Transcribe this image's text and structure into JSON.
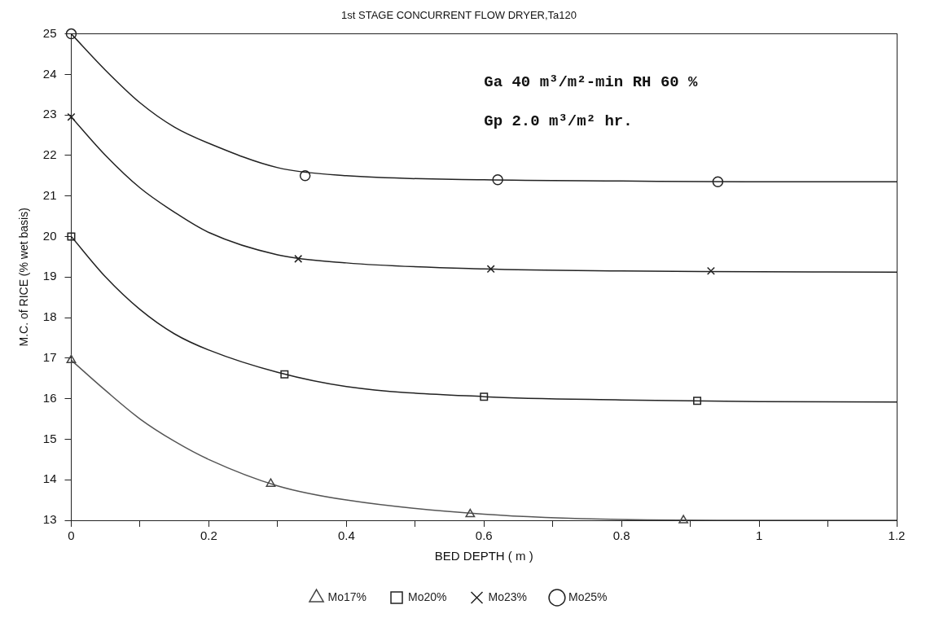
{
  "chart_data": {
    "type": "scatter",
    "title": "1st STAGE CONCURRENT FLOW DRYER,Ta120",
    "xlabel": "BED DEPTH ( m )",
    "ylabel": "M.C. of RICE (% wet basis)",
    "annotations": [
      "Ga 40 m³/m²-min RH 60 %",
      "Gp 2.0 m³/m² hr."
    ],
    "xlim": [
      0,
      1.2
    ],
    "xticks": [
      0,
      {
        "value": 0.1,
        "label": null
      },
      0.2,
      {
        "value": 0.3,
        "label": null
      },
      0.4,
      {
        "value": 0.5,
        "label": null
      },
      0.6,
      {
        "value": 0.7,
        "label": null
      },
      0.8,
      {
        "value": 0.9,
        "label": null
      },
      1,
      {
        "value": 1.1,
        "label": null
      },
      1.2
    ],
    "ylim": [
      13,
      25
    ],
    "yticks": [
      13,
      14,
      15,
      16,
      17,
      18,
      19,
      20,
      21,
      22,
      23,
      24,
      25
    ],
    "grid": false,
    "legend": "bottom",
    "series": [
      {
        "name": "Mo17%",
        "type": "scatter",
        "marker": "triangle",
        "color": "#444444",
        "x": [
          0,
          0.29,
          0.58,
          0.89
        ],
        "values": [
          16.95,
          13.9,
          13.15,
          13.0
        ]
      },
      {
        "name": "Mo20%",
        "type": "scatter",
        "marker": "square",
        "color": "#222222",
        "x": [
          0,
          0.31,
          0.6,
          0.91
        ],
        "values": [
          20,
          16.6,
          16.05,
          15.95
        ]
      },
      {
        "name": "Mo23%",
        "type": "scatter",
        "marker": "cross",
        "color": "#222222",
        "x": [
          0,
          0.33,
          0.61,
          0.93
        ],
        "values": [
          22.95,
          19.45,
          19.2,
          19.15
        ]
      },
      {
        "name": "Mo25%",
        "type": "scatter",
        "marker": "circle",
        "color": "#222222",
        "x": [
          0,
          0.34,
          0.62,
          0.94
        ],
        "values": [
          25,
          21.5,
          21.4,
          21.35
        ]
      },
      {
        "type": "line",
        "color": "#555555",
        "x": [
          0,
          0.05,
          0.1,
          0.15,
          0.2,
          0.3,
          0.4,
          0.6,
          0.8,
          1.0,
          1.2
        ],
        "values": [
          16.95,
          16.2,
          15.5,
          14.95,
          14.5,
          13.85,
          13.5,
          13.15,
          13.02,
          13.0,
          13.0
        ]
      },
      {
        "type": "line",
        "color": "#222222",
        "x": [
          0,
          0.05,
          0.1,
          0.15,
          0.2,
          0.3,
          0.4,
          0.6,
          0.8,
          1.0,
          1.2
        ],
        "values": [
          20,
          19.0,
          18.2,
          17.6,
          17.2,
          16.65,
          16.3,
          16.05,
          15.97,
          15.93,
          15.92
        ]
      },
      {
        "type": "line",
        "color": "#222222",
        "x": [
          0,
          0.05,
          0.1,
          0.15,
          0.2,
          0.3,
          0.4,
          0.6,
          0.8,
          1.0,
          1.2
        ],
        "values": [
          22.95,
          22.0,
          21.2,
          20.6,
          20.1,
          19.55,
          19.35,
          19.2,
          19.15,
          19.13,
          19.12
        ]
      },
      {
        "type": "line",
        "color": "#222222",
        "x": [
          0,
          0.05,
          0.1,
          0.15,
          0.2,
          0.3,
          0.4,
          0.6,
          0.8,
          1.0,
          1.2
        ],
        "values": [
          25,
          24.1,
          23.3,
          22.7,
          22.3,
          21.7,
          21.5,
          21.4,
          21.37,
          21.35,
          21.35
        ]
      }
    ]
  }
}
